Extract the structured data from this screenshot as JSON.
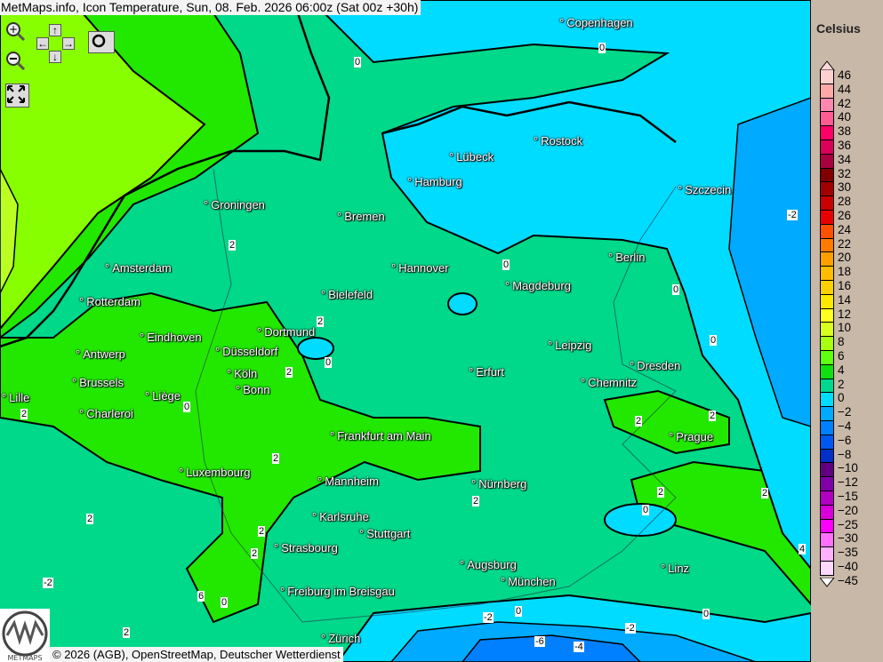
{
  "header": {
    "title": "MetMaps.info, Icon Temperature, Sun, 08. Feb. 2026 06:00z (Sat 00z +30h)"
  },
  "controls": {
    "zoom_in": "zoom-in-icon",
    "zoom_out": "zoom-out-icon",
    "pan_up": "↑",
    "pan_down": "↓",
    "pan_left": "←",
    "pan_right": "→",
    "screenshot": "camera-icon",
    "fullscreen": "fullscreen-icon"
  },
  "footer": {
    "copyright": "© 2026 (AGB), OpenStreetMap, Deutscher Wetterdienst",
    "logo_text": "METMAPS"
  },
  "cities": [
    "Copenhagen",
    "Rostock",
    "Lübeck",
    "Hamburg",
    "Szczecin",
    "Groningen",
    "Bremen",
    "Berlin",
    "Amsterdam",
    "Hannover",
    "Magdeburg",
    "Bielefeld",
    "Rotterdam",
    "Dortmund",
    "Eindhoven",
    "Leipzig",
    "Antwerp",
    "Düsseldorf",
    "Dresden",
    "Erfurt",
    "Köln",
    "Brussels",
    "Chemnitz",
    "Bonn",
    "Lille",
    "Liège",
    "Charleroi",
    "Frankfurt am Main",
    "Prague",
    "Luxembourg",
    "Nürnberg",
    "Mannheim",
    "Karlsruhe",
    "Stuttgart",
    "Strasbourg",
    "Augsburg",
    "Linz",
    "München",
    "Freiburg im Breisgau",
    "Zürich"
  ],
  "contour_labels": [
    "0",
    "0",
    "2",
    "0",
    "0",
    "-2",
    "2",
    "0",
    "0",
    "2",
    "0",
    "2",
    "2",
    "2",
    "2",
    "2",
    "2",
    "2",
    "0",
    "2",
    "2",
    "2",
    "-2",
    "0",
    "-2",
    "0",
    "-6",
    "-4",
    "-2",
    "0",
    "2",
    "4",
    "6"
  ],
  "legend": {
    "unit": "Celsius",
    "labels": [
      "46",
      "44",
      "42",
      "40",
      "38",
      "36",
      "34",
      "32",
      "30",
      "28",
      "26",
      "24",
      "22",
      "20",
      "18",
      "16",
      "14",
      "12",
      "10",
      "8",
      "6",
      "4",
      "2",
      "0",
      "−2",
      "−4",
      "−6",
      "−8",
      "−10",
      "−12",
      "−15",
      "−20",
      "−25",
      "−30",
      "−35",
      "−40",
      "−45"
    ],
    "colors": [
      "#ffd0d0",
      "#ffa8a8",
      "#ff88b0",
      "#ff5c94",
      "#ff0068",
      "#d80058",
      "#a80040",
      "#800000",
      "#a00000",
      "#c80000",
      "#e80000",
      "#ff5000",
      "#ff7c00",
      "#ffa000",
      "#ffbc00",
      "#ffd000",
      "#ffe800",
      "#ffff20",
      "#d8ff20",
      "#a8ff10",
      "#60ff10",
      "#10e010",
      "#00d890",
      "#00dcff",
      "#00aaff",
      "#0080ff",
      "#0058f0",
      "#0030c8",
      "#600080",
      "#8000a8",
      "#b000c0",
      "#d800d8",
      "#ff00ff",
      "#ff70ff",
      "#ffb0ff",
      "#ffd8ff"
    ]
  },
  "map_colors": {
    "band_-4_-2": "#00aaff",
    "band_-2_0": "#00dcff",
    "band_0_2": "#00d88a",
    "band_2_4": "#22e800",
    "band_4_6": "#88ff00",
    "band_6_8": "#bbff22"
  }
}
